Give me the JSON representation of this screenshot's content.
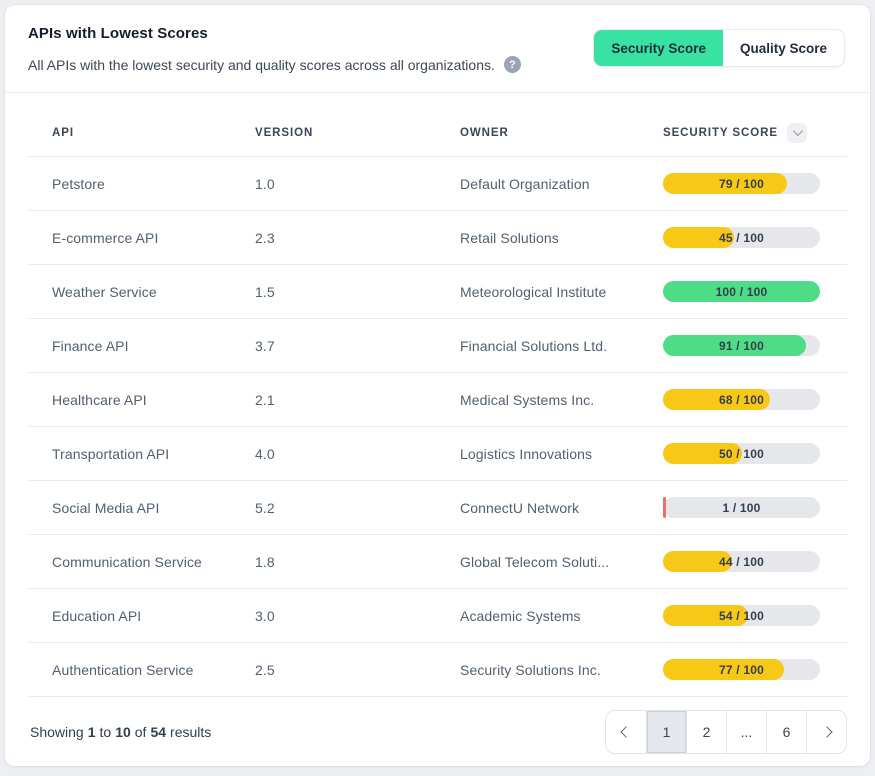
{
  "header": {
    "title": "APIs with Lowest Scores",
    "subtitle": "All APIs with the lowest security and quality scores across all organizations.",
    "help_icon_glyph": "?",
    "toggle": {
      "security_label": "Security Score",
      "quality_label": "Quality Score",
      "active": "Security Score"
    }
  },
  "table": {
    "columns": [
      "API",
      "VERSION",
      "OWNER",
      "SECURITY SCORE"
    ],
    "sort_icon": "chevron-down",
    "rows": [
      {
        "api": "Petstore",
        "version": "1.0",
        "owner": "Default Organization",
        "score": 79,
        "score_label": "79 / 100",
        "status": "yellow"
      },
      {
        "api": "E-commerce API",
        "version": "2.3",
        "owner": "Retail Solutions",
        "score": 45,
        "score_label": "45 / 100",
        "status": "yellow"
      },
      {
        "api": "Weather Service",
        "version": "1.5",
        "owner": "Meteorological Institute",
        "score": 100,
        "score_label": "100 / 100",
        "status": "green"
      },
      {
        "api": "Finance API",
        "version": "3.7",
        "owner": "Financial Solutions Ltd.",
        "score": 91,
        "score_label": "91 / 100",
        "status": "green"
      },
      {
        "api": "Healthcare API",
        "version": "2.1",
        "owner": "Medical Systems Inc.",
        "score": 68,
        "score_label": "68 / 100",
        "status": "yellow"
      },
      {
        "api": "Transportation API",
        "version": "4.0",
        "owner": "Logistics Innovations",
        "score": 50,
        "score_label": "50 / 100",
        "status": "yellow"
      },
      {
        "api": "Social Media API",
        "version": "5.2",
        "owner": "ConnectU Network",
        "score": 1,
        "score_label": "1 / 100",
        "status": "red"
      },
      {
        "api": "Communication Service",
        "version": "1.8",
        "owner": "Global Telecom Soluti...",
        "score": 44,
        "score_label": "44 / 100",
        "status": "yellow"
      },
      {
        "api": "Education API",
        "version": "3.0",
        "owner": "Academic Systems",
        "score": 54,
        "score_label": "54 / 100",
        "status": "yellow"
      },
      {
        "api": "Authentication Service",
        "version": "2.5",
        "owner": "Security Solutions Inc.",
        "score": 77,
        "score_label": "77 / 100",
        "status": "yellow"
      }
    ]
  },
  "footer": {
    "summary": {
      "showing": "Showing",
      "from": "1",
      "to_word": "to",
      "to": "10",
      "of_word": "of",
      "total": "54",
      "results_word": "results"
    },
    "pagination": [
      {
        "name": "pagination-prev",
        "icon": "chevron-left"
      },
      {
        "name": "pagination-page-1",
        "label": "1",
        "active": true
      },
      {
        "name": "pagination-page-2",
        "label": "2"
      },
      {
        "name": "pagination-ellipsis",
        "label": "..."
      },
      {
        "name": "pagination-page-6",
        "label": "6"
      },
      {
        "name": "pagination-next",
        "icon": "chevron-right"
      }
    ]
  },
  "colors": {
    "yellow": "#f8c818",
    "green": "#4edc86",
    "red": "#ef6e6e",
    "track": "#e5e7ea",
    "toggle_active_green": "#38e2a2"
  }
}
